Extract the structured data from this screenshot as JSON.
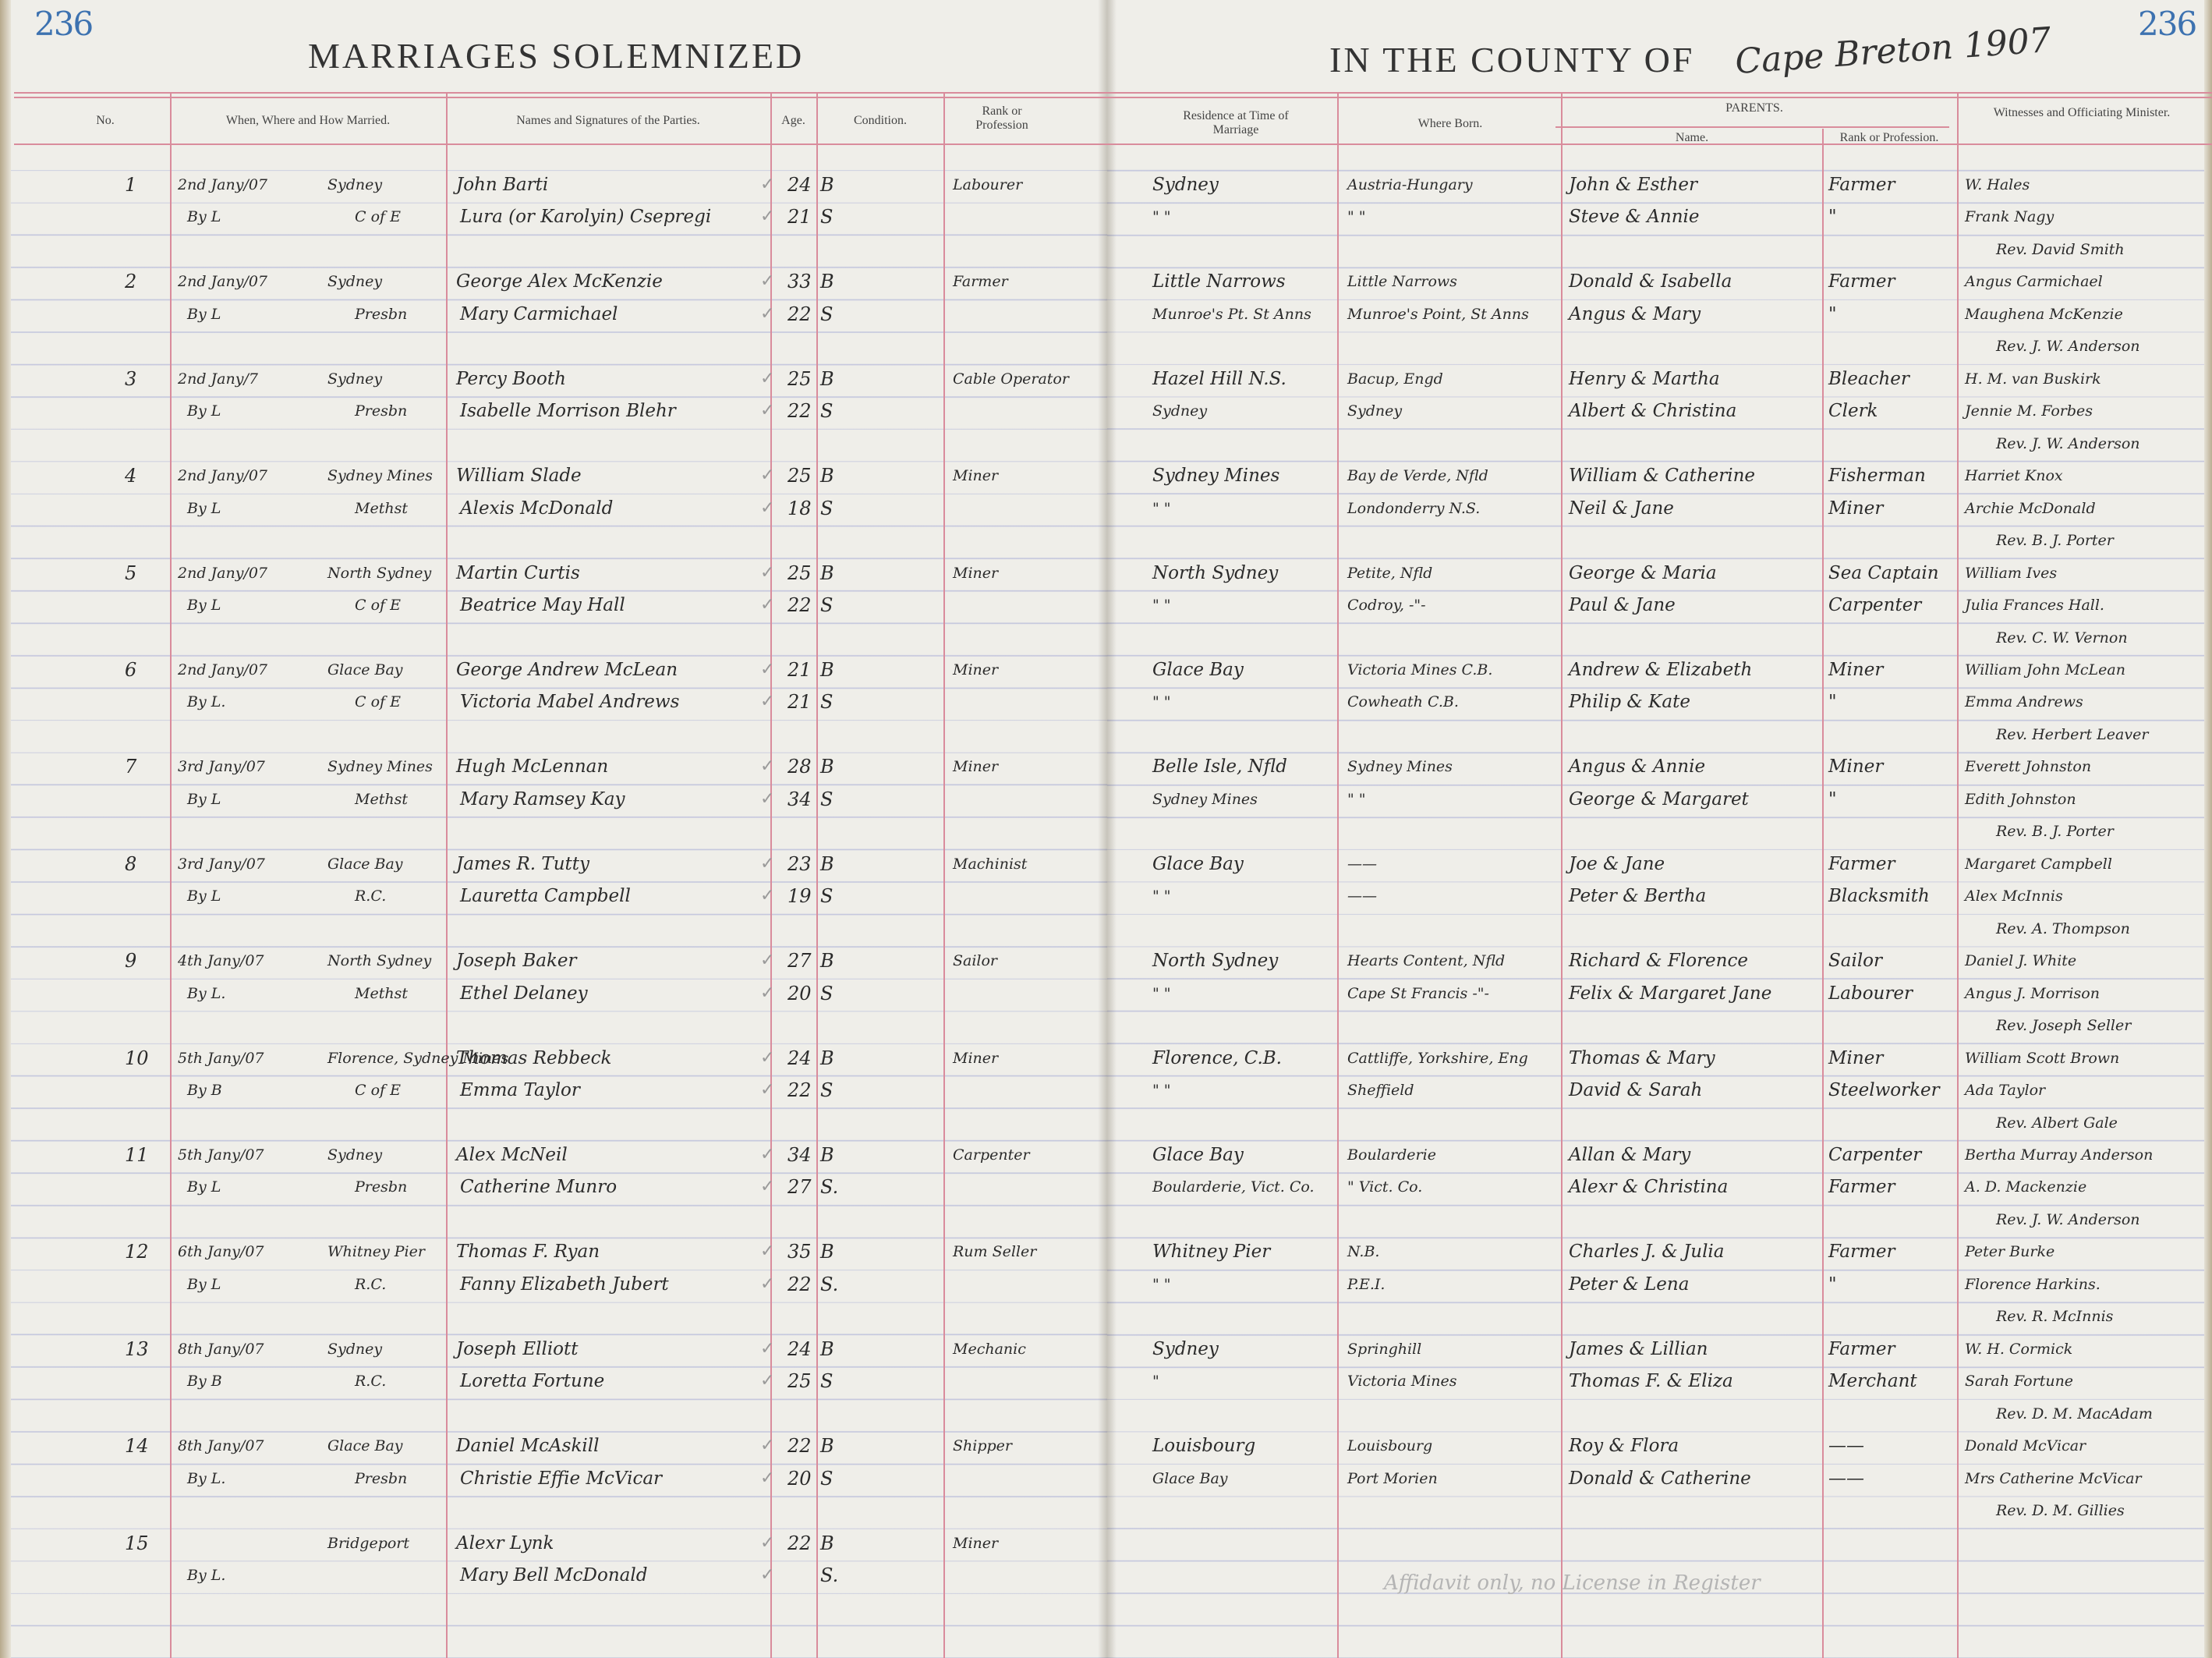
{
  "header": {
    "page_number_left": "236",
    "page_number_right": "236",
    "title_left": "MARRIAGES SOLEMNIZED",
    "title_right": "IN THE COUNTY OF",
    "county_handwritten": "Cape Breton 1907"
  },
  "columns": {
    "no": "No.",
    "when_where": "When, Where and How Married.",
    "names": "Names and Signatures of the Parties.",
    "age": "Age.",
    "condition": "Condition.",
    "rank": "Rank or Profession",
    "residence": "Residence at Time of Marriage",
    "where_born": "Where Born.",
    "parents": "PARENTS.",
    "parents_name": "Name.",
    "parents_rank": "Rank or Profession.",
    "witnesses": "Witnesses and Officiating Minister."
  },
  "entries": [
    {
      "no": "1",
      "date": "2nd Jany/07",
      "place": "Sydney",
      "how": "By L",
      "denomination": "C of E",
      "groom": "John Barti",
      "bride": "Lura (or Karolyin) Csepregi",
      "groom_age": "24",
      "bride_age": "21",
      "groom_condition": "B",
      "bride_condition": "S",
      "rank": "Labourer",
      "groom_residence": "Sydney",
      "bride_residence": "\"     \"",
      "groom_born": "Austria-Hungary",
      "bride_born": "\"     \"",
      "groom_parents": "John & Esther",
      "bride_parents": "Steve & Annie",
      "groom_parents_rank": "Farmer",
      "bride_parents_rank": "\"",
      "witness_1": "W. Hales",
      "witness_2": "Frank Nagy",
      "minister": "Rev. David Smith"
    },
    {
      "no": "2",
      "date": "2nd Jany/07",
      "place": "Sydney",
      "how": "By L",
      "denomination": "Presbn",
      "groom": "George Alex McKenzie",
      "bride": "Mary Carmichael",
      "groom_age": "33",
      "bride_age": "22",
      "groom_condition": "B",
      "bride_condition": "S",
      "rank": "Farmer",
      "groom_residence": "Little Narrows",
      "bride_residence": "Munroe's Pt. St Anns",
      "groom_born": "Little Narrows",
      "bride_born": "Munroe's Point, St Anns",
      "groom_parents": "Donald & Isabella",
      "bride_parents": "Angus & Mary",
      "groom_parents_rank": "Farmer",
      "bride_parents_rank": "\"",
      "witness_1": "Angus Carmichael",
      "witness_2": "Maughena McKenzie",
      "minister": "Rev. J. W. Anderson"
    },
    {
      "no": "3",
      "date": "2nd Jany/7",
      "place": "Sydney",
      "how": "By L",
      "denomination": "Presbn",
      "groom": "Percy Booth",
      "bride": "Isabelle Morrison Blehr",
      "groom_age": "25",
      "bride_age": "22",
      "groom_condition": "B",
      "bride_condition": "S",
      "rank": "Cable Operator",
      "groom_residence": "Hazel Hill N.S.",
      "bride_residence": "Sydney",
      "groom_born": "Bacup, Engd",
      "bride_born": "Sydney",
      "groom_parents": "Henry & Martha",
      "bride_parents": "Albert & Christina",
      "groom_parents_rank": "Bleacher",
      "bride_parents_rank": "Clerk",
      "witness_1": "H. M. van Buskirk",
      "witness_2": "Jennie M. Forbes",
      "minister": "Rev. J. W. Anderson"
    },
    {
      "no": "4",
      "date": "2nd Jany/07",
      "place": "Sydney Mines",
      "how": "By L",
      "denomination": "Methst",
      "groom": "William Slade",
      "bride": "Alexis McDonald",
      "groom_age": "25",
      "bride_age": "18",
      "groom_condition": "B",
      "bride_condition": "S",
      "rank": "Miner",
      "groom_residence": "Sydney Mines",
      "bride_residence": "\"     \"",
      "groom_born": "Bay de Verde, Nfld",
      "bride_born": "Londonderry N.S.",
      "groom_parents": "William & Catherine",
      "bride_parents": "Neil & Jane",
      "groom_parents_rank": "Fisherman",
      "bride_parents_rank": "Miner",
      "witness_1": "Harriet Knox",
      "witness_2": "Archie McDonald",
      "minister": "Rev. B. J. Porter"
    },
    {
      "no": "5",
      "date": "2nd Jany/07",
      "place": "North Sydney",
      "how": "By L",
      "denomination": "C of E",
      "groom": "Martin Curtis",
      "bride": "Beatrice May Hall",
      "groom_age": "25",
      "bride_age": "22",
      "groom_condition": "B",
      "bride_condition": "S",
      "rank": "Miner",
      "groom_residence": "North Sydney",
      "bride_residence": "\"     \"",
      "groom_born": "Petite, Nfld",
      "bride_born": "Codroy, -\"-",
      "groom_parents": "George & Maria",
      "bride_parents": "Paul & Jane",
      "groom_parents_rank": "Sea Captain",
      "bride_parents_rank": "Carpenter",
      "witness_1": "William Ives",
      "witness_2": "Julia Frances Hall.",
      "minister": "Rev. C. W. Vernon"
    },
    {
      "no": "6",
      "date": "2nd Jany/07",
      "place": "Glace Bay",
      "how": "By L.",
      "denomination": "C of E",
      "groom": "George Andrew McLean",
      "bride": "Victoria Mabel Andrews",
      "groom_age": "21",
      "bride_age": "21",
      "groom_condition": "B",
      "bride_condition": "S",
      "rank": "Miner",
      "groom_residence": "Glace Bay",
      "bride_residence": "\"     \"",
      "groom_born": "Victoria Mines C.B.",
      "bride_born": "Cowheath C.B.",
      "groom_parents": "Andrew & Elizabeth",
      "bride_parents": "Philip & Kate",
      "groom_parents_rank": "Miner",
      "bride_parents_rank": "\"",
      "witness_1": "William John McLean",
      "witness_2": "Emma Andrews",
      "minister": "Rev. Herbert Leaver"
    },
    {
      "no": "7",
      "date": "3rd Jany/07",
      "place": "Sydney Mines",
      "how": "By L",
      "denomination": "Methst",
      "groom": "Hugh McLennan",
      "bride": "Mary Ramsey Kay",
      "groom_age": "28",
      "bride_age": "34",
      "groom_condition": "B",
      "bride_condition": "S",
      "rank": "Miner",
      "groom_residence": "Belle Isle, Nfld",
      "bride_residence": "Sydney Mines",
      "groom_born": "Sydney Mines",
      "bride_born": "\"     \"",
      "groom_parents": "Angus & Annie",
      "bride_parents": "George & Margaret",
      "groom_parents_rank": "Miner",
      "bride_parents_rank": "\"",
      "witness_1": "Everett Johnston",
      "witness_2": "Edith Johnston",
      "minister": "Rev. B. J. Porter"
    },
    {
      "no": "8",
      "date": "3rd Jany/07",
      "place": "Glace Bay",
      "how": "By L",
      "denomination": "R.C.",
      "groom": "James R. Tutty",
      "bride": "Lauretta Campbell",
      "groom_age": "23",
      "bride_age": "19",
      "groom_condition": "B",
      "bride_condition": "S",
      "rank": "Machinist",
      "groom_residence": "Glace Bay",
      "bride_residence": "\"     \"",
      "groom_born": "——",
      "bride_born": "——",
      "groom_parents": "Joe & Jane",
      "bride_parents": "Peter & Bertha",
      "groom_parents_rank": "Farmer",
      "bride_parents_rank": "Blacksmith",
      "witness_1": "Margaret Campbell",
      "witness_2": "Alex McInnis",
      "minister": "Rev. A. Thompson"
    },
    {
      "no": "9",
      "date": "4th Jany/07",
      "place": "North Sydney",
      "how": "By L.",
      "denomination": "Methst",
      "groom": "Joseph Baker",
      "bride": "Ethel Delaney",
      "groom_age": "27",
      "bride_age": "20",
      "groom_condition": "B",
      "bride_condition": "S",
      "rank": "Sailor",
      "groom_residence": "North Sydney",
      "bride_residence": "\"     \"",
      "groom_born": "Hearts Content, Nfld",
      "bride_born": "Cape St Francis -\"-",
      "groom_parents": "Richard & Florence",
      "bride_parents": "Felix & Margaret Jane",
      "groom_parents_rank": "Sailor",
      "bride_parents_rank": "Labourer",
      "witness_1": "Daniel J. White",
      "witness_2": "Angus J. Morrison",
      "minister": "Rev. Joseph Seller"
    },
    {
      "no": "10",
      "date": "5th Jany/07",
      "place": "Florence, Sydney Mines",
      "how": "By B",
      "denomination": "C of E",
      "groom": "Thomas Rebbeck",
      "bride": "Emma Taylor",
      "groom_age": "24",
      "bride_age": "22",
      "groom_condition": "B",
      "bride_condition": "S",
      "rank": "Miner",
      "groom_residence": "Florence, C.B.",
      "bride_residence": "\"     \"",
      "groom_born": "Cattliffe, Yorkshire, Eng",
      "bride_born": "Sheffield",
      "groom_parents": "Thomas & Mary",
      "bride_parents": "David & Sarah",
      "groom_parents_rank": "Miner",
      "bride_parents_rank": "Steelworker",
      "witness_1": "William Scott Brown",
      "witness_2": "Ada Taylor",
      "minister": "Rev. Albert Gale"
    },
    {
      "no": "11",
      "date": "5th Jany/07",
      "place": "Sydney",
      "how": "By L",
      "denomination": "Presbn",
      "groom": "Alex McNeil",
      "bride": "Catherine Munro",
      "groom_age": "34",
      "bride_age": "27",
      "groom_condition": "B",
      "bride_condition": "S.",
      "rank": "Carpenter",
      "groom_residence": "Glace Bay",
      "bride_residence": "Boularderie, Vict. Co.",
      "groom_born": "Boularderie",
      "bride_born": "\"   Vict. Co.",
      "groom_parents": "Allan & Mary",
      "bride_parents": "Alexr & Christina",
      "groom_parents_rank": "Carpenter",
      "bride_parents_rank": "Farmer",
      "witness_1": "Bertha Murray Anderson",
      "witness_2": "A. D. Mackenzie",
      "minister": "Rev. J. W. Anderson"
    },
    {
      "no": "12",
      "date": "6th Jany/07",
      "place": "Whitney Pier",
      "how": "By L",
      "denomination": "R.C.",
      "groom": "Thomas F. Ryan",
      "bride": "Fanny Elizabeth Jubert",
      "groom_age": "35",
      "bride_age": "22",
      "groom_condition": "B",
      "bride_condition": "S.",
      "rank": "Rum Seller",
      "groom_residence": "Whitney Pier",
      "bride_residence": "\"     \"",
      "groom_born": "N.B.",
      "bride_born": "P.E.I.",
      "groom_parents": "Charles J. & Julia",
      "bride_parents": "Peter & Lena",
      "groom_parents_rank": "Farmer",
      "bride_parents_rank": "\"",
      "witness_1": "Peter Burke",
      "witness_2": "Florence Harkins.",
      "minister": "Rev. R. McInnis"
    },
    {
      "no": "13",
      "date": "8th Jany/07",
      "place": "Sydney",
      "how": "By B",
      "denomination": "R.C.",
      "groom": "Joseph Elliott",
      "bride": "Loretta Fortune",
      "groom_age": "24",
      "bride_age": "25",
      "groom_condition": "B",
      "bride_condition": "S",
      "rank": "Mechanic",
      "groom_residence": "Sydney",
      "bride_residence": "\"",
      "groom_born": "Springhill",
      "bride_born": "Victoria Mines",
      "groom_parents": "James & Lillian",
      "bride_parents": "Thomas F. & Eliza",
      "groom_parents_rank": "Farmer",
      "bride_parents_rank": "Merchant",
      "witness_1": "W. H. Cormick",
      "witness_2": "Sarah Fortune",
      "minister": "Rev. D. M. MacAdam"
    },
    {
      "no": "14",
      "date": "8th Jany/07",
      "place": "Glace Bay",
      "how": "By L.",
      "denomination": "Presbn",
      "groom": "Daniel McAskill",
      "bride": "Christie Effie McVicar",
      "groom_age": "22",
      "bride_age": "20",
      "groom_condition": "B",
      "bride_condition": "S",
      "rank": "Shipper",
      "groom_residence": "Louisbourg",
      "bride_residence": "Glace Bay",
      "groom_born": "Louisbourg",
      "bride_born": "Port Morien",
      "groom_parents": "Roy & Flora",
      "bride_parents": "Donald & Catherine",
      "groom_parents_rank": "——",
      "bride_parents_rank": "——",
      "witness_1": "Donald McVicar",
      "witness_2": "Mrs Catherine McVicar",
      "minister": "Rev. D. M. Gillies"
    },
    {
      "no": "15",
      "date": "",
      "place": "Bridgeport",
      "how": "By L.",
      "denomination": "",
      "groom": "Alexr Lynk",
      "bride": "Mary Bell McDonald",
      "groom_age": "22",
      "bride_age": "",
      "groom_condition": "B",
      "bride_condition": "S.",
      "rank": "Miner",
      "groom_residence": "",
      "bride_residence": "",
      "groom_born": "",
      "bride_born": "",
      "groom_parents": "",
      "bride_parents": "",
      "groom_parents_rank": "",
      "bride_parents_rank": "",
      "witness_1": "",
      "witness_2": "",
      "minister": ""
    }
  ],
  "pencil_note": "Affidavit only, no License in Register",
  "colors": {
    "ruling_red": "#d98c9c",
    "ruling_blue": "#8c96c8",
    "page_number_blue": "#3d72b0",
    "paper": "#efeee9"
  }
}
